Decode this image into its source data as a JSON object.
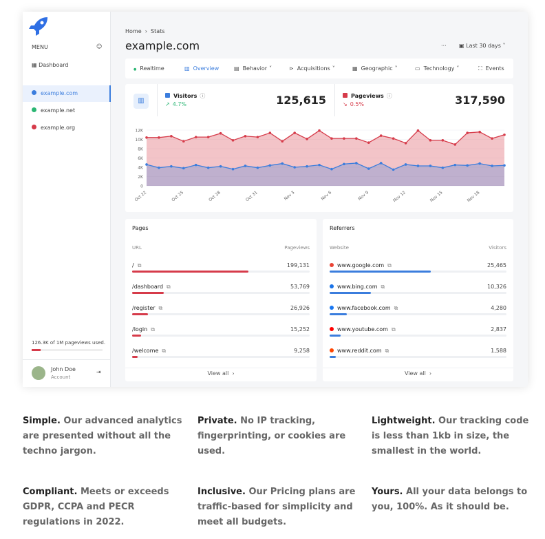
{
  "sidebar": {
    "menu": "MENU",
    "dashboard": "Dashboard",
    "sites": [
      "example.com",
      "example.net",
      "example.org"
    ],
    "usage": "126.3K of 1M pageviews used.",
    "user": "John Doe",
    "role": "Account"
  },
  "header": {
    "breadcrumb": [
      "Home",
      "Stats"
    ],
    "title": "example.com",
    "range": "Last 30 days"
  },
  "nav": [
    "Realtime",
    "Overview",
    "Behavior",
    "Acquisitions",
    "Geographic",
    "Technology",
    "Events"
  ],
  "stats": [
    {
      "name": "Visitors",
      "change": "4.7%",
      "total": "125,615"
    },
    {
      "name": "Pageviews",
      "change": "0.5%",
      "total": "317,590"
    }
  ],
  "chart_data": {
    "type": "area",
    "categories": [
      "Oct 22",
      null,
      null,
      "Oct 25",
      null,
      null,
      "Oct 28",
      null,
      null,
      "Oct 31",
      null,
      null,
      "Nov 3",
      null,
      null,
      "Nov 6",
      null,
      null,
      "Nov 9",
      null,
      null,
      "Nov 12",
      null,
      null,
      "Nov 15",
      null,
      null,
      "Nov 18",
      null,
      null
    ],
    "series": [
      {
        "name": "Pageviews",
        "color": "#d63b4a",
        "values": [
          10400,
          10400,
          10700,
          9600,
          10500,
          10500,
          11300,
          9800,
          10700,
          10500,
          11400,
          9600,
          11400,
          10100,
          11900,
          10200,
          10200,
          10200,
          9300,
          10800,
          10200,
          9200,
          11900,
          9800,
          9800,
          8900,
          11400,
          11600,
          10200,
          11000
        ]
      },
      {
        "name": "Visitors",
        "color": "#3b7ddd",
        "values": [
          4600,
          3900,
          4200,
          3800,
          4500,
          3900,
          4200,
          3600,
          4300,
          3900,
          4400,
          4800,
          4000,
          4200,
          4500,
          3600,
          4700,
          4900,
          3700,
          4900,
          3500,
          4600,
          4300,
          4300,
          3900,
          4500,
          4400,
          4800,
          4300,
          4400
        ]
      }
    ],
    "ylim": [
      0,
      12000
    ],
    "yticks": [
      0,
      {
        "value": 2000,
        "label": "2K"
      },
      {
        "value": 4000,
        "label": "4K"
      },
      {
        "value": 6000,
        "label": "6K"
      },
      {
        "value": 8000,
        "label": "8K"
      },
      {
        "value": 10000,
        "label": "10K"
      },
      {
        "value": 12000,
        "label": "12K"
      }
    ],
    "grid": true
  },
  "pages": {
    "title": "Pages",
    "columns": [
      "URL",
      "Pageviews"
    ],
    "labels": [
      "/",
      "/dashboard",
      "/register",
      "/login",
      "/welcome"
    ],
    "values": [
      199131,
      53769,
      26926,
      15252,
      9258
    ],
    "value_labels": [
      "199,131",
      "53,769",
      "26,926",
      "15,252",
      "9,258"
    ],
    "color": "#d63b4a",
    "more": "View all"
  },
  "referrers": {
    "title": "Referrers",
    "columns": [
      "Website",
      "Visitors"
    ],
    "labels": [
      "www.google.com",
      "www.bing.com",
      "www.facebook.com",
      "www.youtube.com",
      "www.reddit.com"
    ],
    "values": [
      25465,
      10326,
      4280,
      2837,
      1588
    ],
    "value_labels": [
      "25,465",
      "10,326",
      "4,280",
      "2,837",
      "1,588"
    ],
    "color": "#3b7ddd",
    "more": "View all"
  },
  "features": [
    {
      "title": "Simple.",
      "text": "Our advanced analytics are presented without all the techno jargon."
    },
    {
      "title": "Private.",
      "text": "No IP tracking, fingerprinting, or cookies are used."
    },
    {
      "title": "Lightweight.",
      "text": "Our tracking code is less than 1kb in size, the smallest in the world."
    },
    {
      "title": "Compliant.",
      "text": "Meets or exceeds GDPR, CCPA and PECR regulations in 2022."
    },
    {
      "title": "Inclusive.",
      "text": "Our Pricing plans are traffic-based for simplicity and meet all budgets."
    },
    {
      "title": "Yours.",
      "text": "All your data belongs to you, 100%. As it should be."
    }
  ]
}
